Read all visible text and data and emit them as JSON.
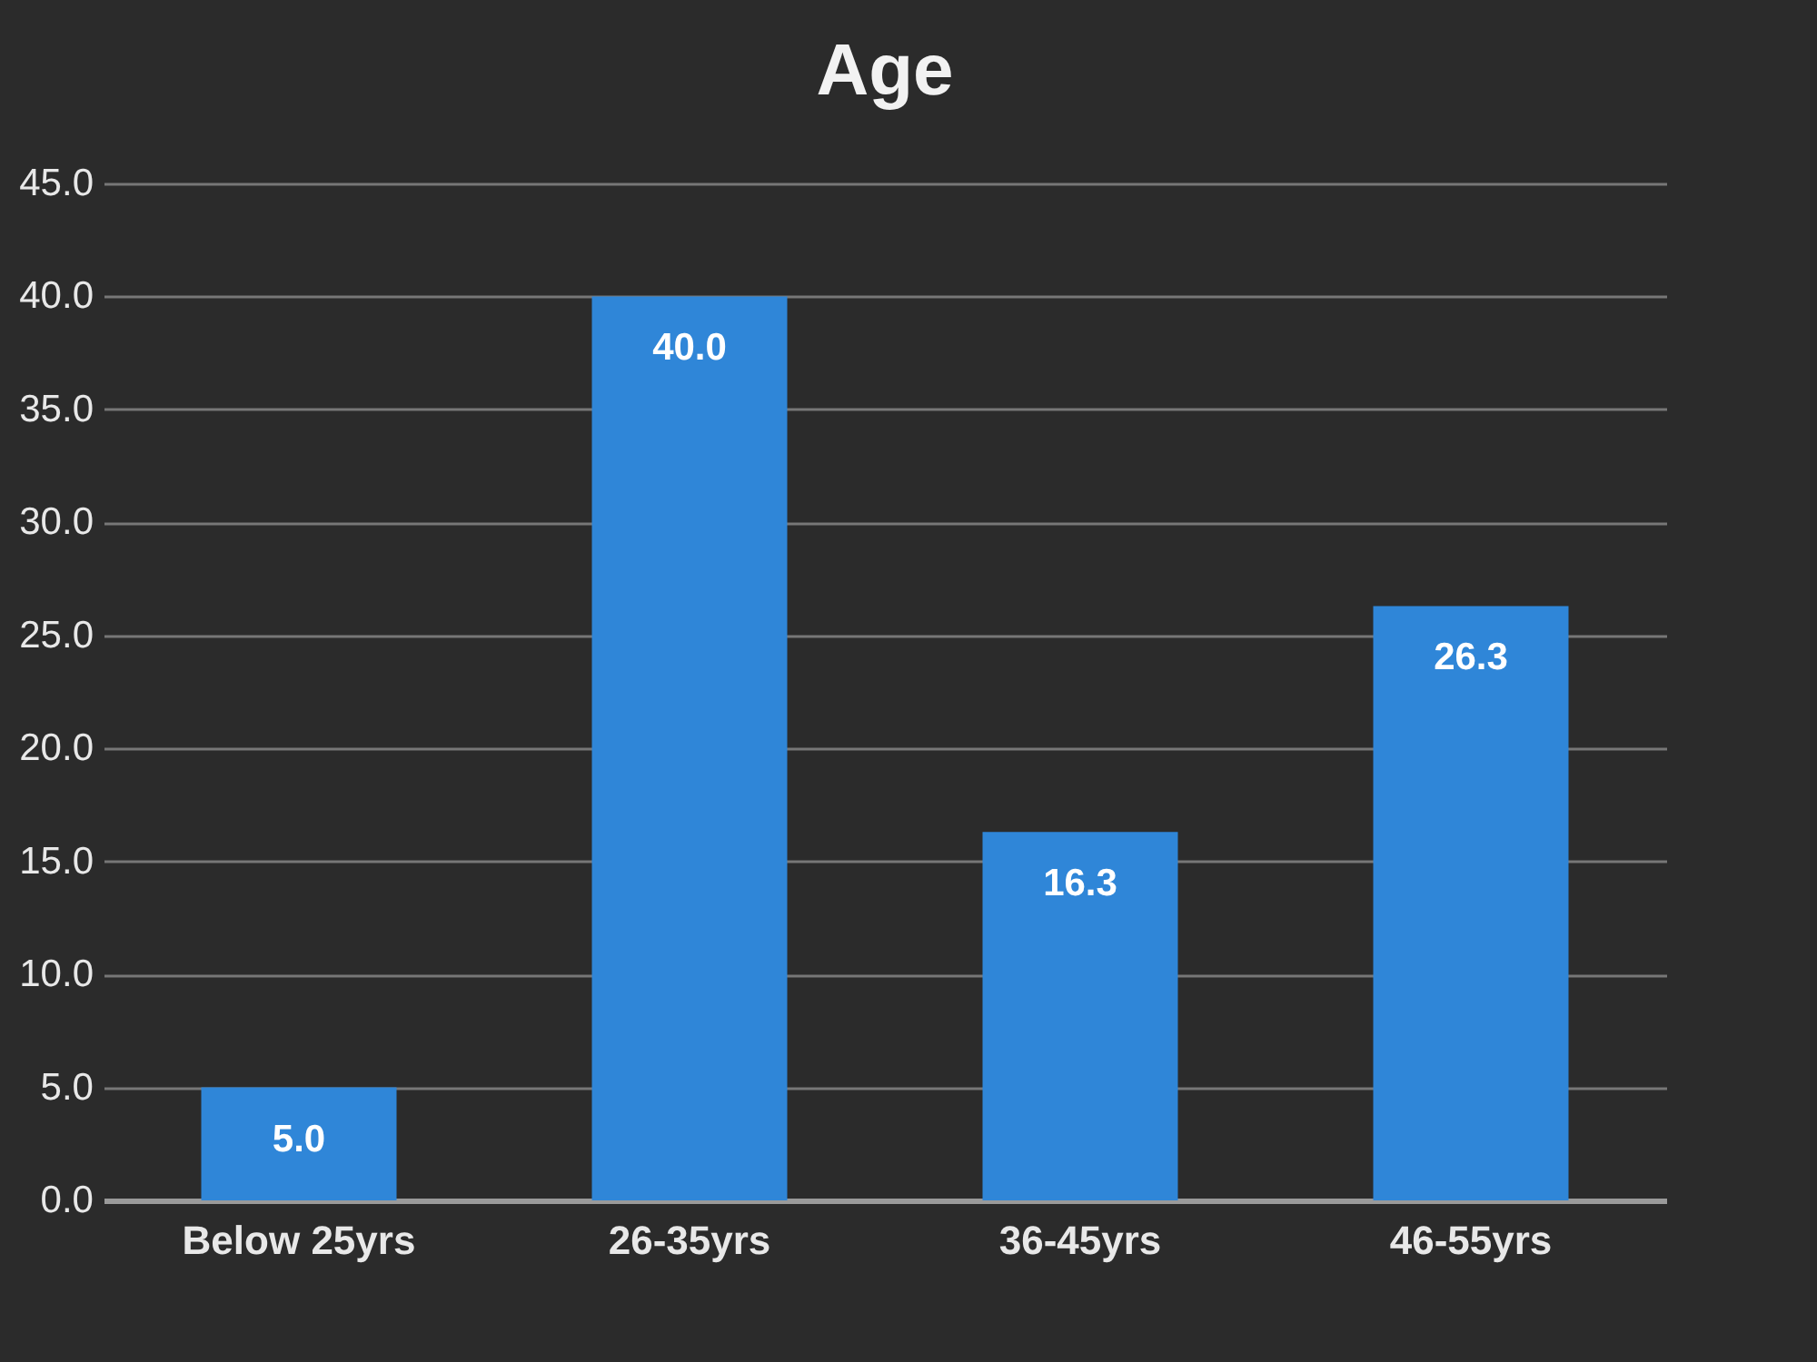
{
  "chart_data": {
    "type": "bar",
    "title": "Age",
    "categories": [
      "Below 25yrs",
      "26-35yrs",
      "36-45yrs",
      "46-55yrs"
    ],
    "values": [
      5.0,
      40.0,
      16.3,
      26.3
    ],
    "value_labels": [
      "5.0",
      "40.0",
      "16.3",
      "26.3"
    ],
    "color": "#2f86d8",
    "ylim": [
      0,
      45
    ],
    "yticks": [
      {
        "value": 0,
        "label": "0.0"
      },
      {
        "value": 5,
        "label": "5.0"
      },
      {
        "value": 10,
        "label": "10.0"
      },
      {
        "value": 15,
        "label": "15.0"
      },
      {
        "value": 20,
        "label": "20.0"
      },
      {
        "value": 25,
        "label": "25.0"
      },
      {
        "value": 30,
        "label": "30.0"
      },
      {
        "value": 35,
        "label": "35.0"
      },
      {
        "value": 40,
        "label": "40.0"
      },
      {
        "value": 45,
        "label": "45.0"
      }
    ],
    "grid": "y"
  }
}
